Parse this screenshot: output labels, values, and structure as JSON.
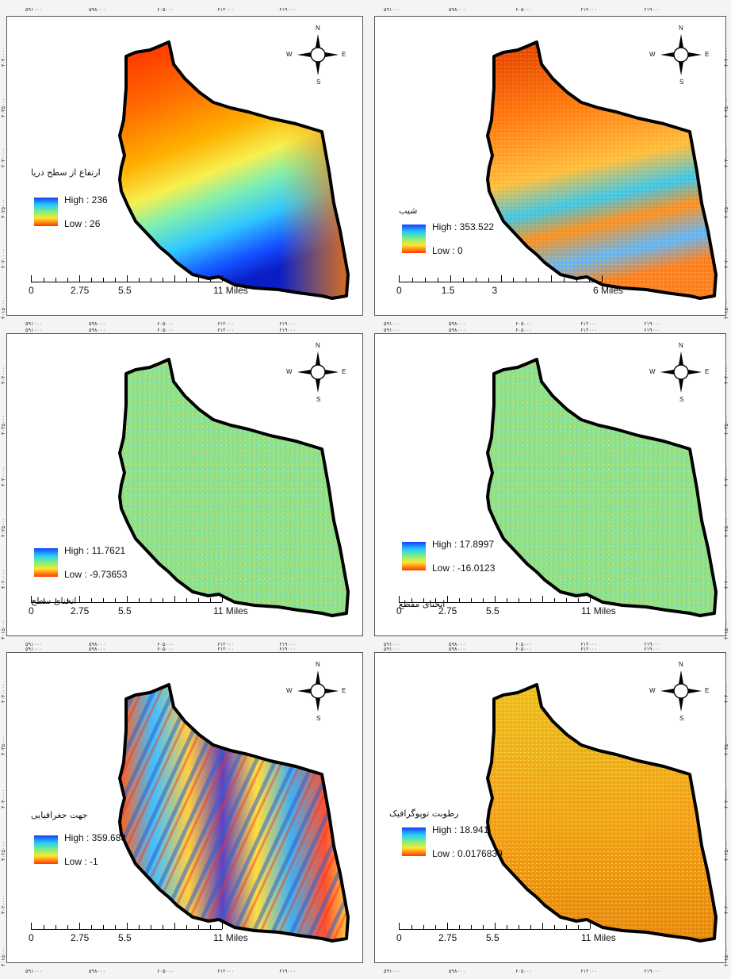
{
  "x_coords": [
    "۵۹۱۰۰۰",
    "۵۹۸۰۰۰",
    "۶۰۵۰۰۰",
    "۶۱۲۰۰۰",
    "۶۱۹۰۰۰"
  ],
  "y_coords_left": [
    "۴۰۴۰۰۰۰",
    "۴۰۳۵۰۰۰",
    "۴۰۳۰۰۰۰",
    "۴۰۲۵۰۰۰",
    "۴۰۲۰۰۰۰",
    "۴۰۱۵۰۰۰"
  ],
  "y_coords_right": [
    "۴۰۴۰۰۰۰",
    "۴۰۳۵۰۰۰",
    "۴۰۳۰۰۰۰",
    "۴۰۲۵۰۰۰",
    "۴۰۲۰۰۰۰",
    "۴۰۱۵۰۰۰"
  ],
  "compass": {
    "n": "N",
    "s": "S",
    "e": "E",
    "w": "W"
  },
  "panels": [
    {
      "title": "ارتفاع از سطح دریا",
      "high": "High : 236",
      "low": "Low : 26",
      "scale": [
        "0",
        "2.75",
        "5.5",
        "11 Miles"
      ],
      "style": "elevation"
    },
    {
      "title": "شیب",
      "high": "High : 353.522",
      "low": "Low : 0",
      "scale": [
        "0",
        "1.5",
        "3",
        "6 Miles"
      ],
      "style": "slope"
    },
    {
      "title": "انحنای سطح",
      "high": "High : 11.7621",
      "low": "Low : -9.73653",
      "scale": [
        "0",
        "2.75",
        "5.5",
        "11 Miles"
      ],
      "style": "curv"
    },
    {
      "title": "انحنای مقطع",
      "high": "High : 17.8997",
      "low": "Low : -16.0123",
      "scale": [
        "0",
        "2.75",
        "5.5",
        "11 Miles"
      ],
      "style": "curv2"
    },
    {
      "title": "جهت جغرافیایی",
      "high": "High : 359.683",
      "low": "Low : -1",
      "scale": [
        "0",
        "2.75",
        "5.5",
        "11 Miles"
      ],
      "style": "aspect"
    },
    {
      "title": "رطوبت توپوگرافیک",
      "high": "High : 18.941",
      "low": "Low : 0.0176839",
      "scale": [
        "0",
        "2.75",
        "5.5",
        "11 Miles"
      ],
      "style": "twi"
    }
  ]
}
